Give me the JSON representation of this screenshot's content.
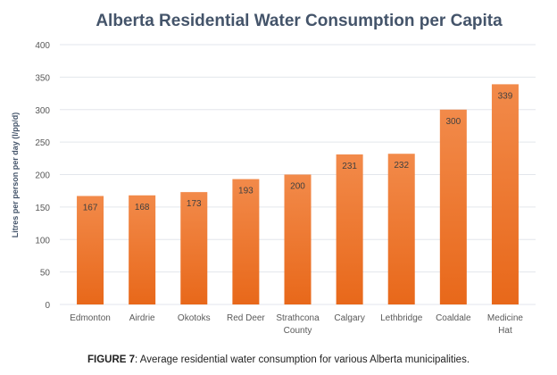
{
  "chart_data": {
    "type": "bar",
    "title": "Alberta Residential Water Consumption per Capita",
    "xlabel": "",
    "ylabel": "Litres per person per day (l/pp/d)",
    "categories": [
      "Edmonton",
      "Airdrie",
      "Okotoks",
      "Red Deer",
      "Strathcona County",
      "Calgary",
      "Lethbridge",
      "Coaldale",
      "Medicine Hat"
    ],
    "category_lines": [
      [
        "Edmonton"
      ],
      [
        "Airdrie"
      ],
      [
        "Okotoks"
      ],
      [
        "Red Deer"
      ],
      [
        "Strathcona",
        "County"
      ],
      [
        "Calgary"
      ],
      [
        "Lethbridge"
      ],
      [
        "Coaldale"
      ],
      [
        "Medicine",
        "Hat"
      ]
    ],
    "values": [
      167,
      168,
      173,
      193,
      200,
      231,
      232,
      300,
      339
    ],
    "ylim": [
      0,
      400
    ],
    "yticks": [
      0,
      50,
      100,
      150,
      200,
      250,
      300,
      350,
      400
    ],
    "grid": true,
    "legend": "none",
    "colors": {
      "bar_top": "#f28a4a",
      "bar_bottom": "#e8681a",
      "grid": "#e3e6ec",
      "text": "#595959",
      "title": "#44546a"
    }
  },
  "caption": {
    "label": "FIGURE 7",
    "text": ": Average residential water consumption for various Alberta municipalities."
  }
}
